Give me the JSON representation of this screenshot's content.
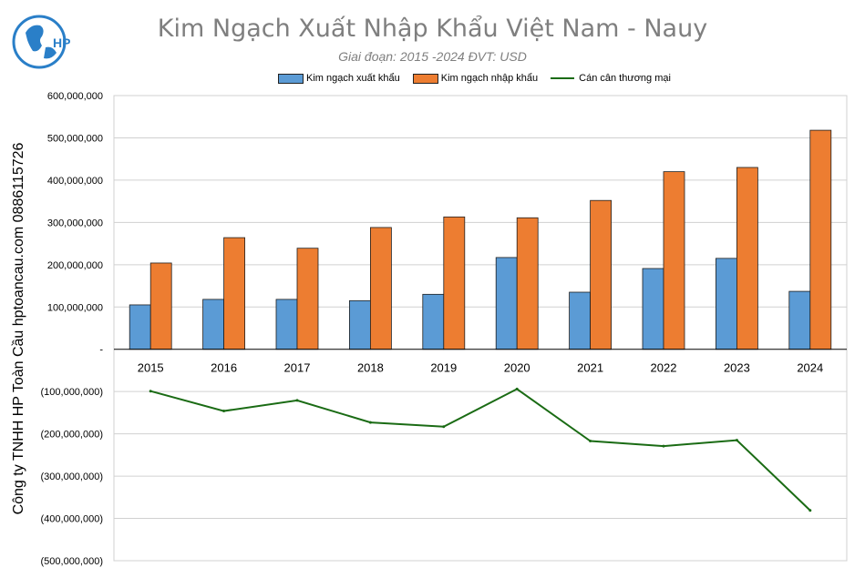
{
  "header": {
    "title": "Kim Ngạch Xuất Nhập Khẩu Việt Nam - Nauy",
    "subtitle": "Giai đoạn: 2015 -2024  ĐVT: USD"
  },
  "watermark": {
    "side_text": "Công ty TNHH HP Toàn Cầu hptoancau.com 0886115726",
    "logo_text": "HP"
  },
  "colors": {
    "export": "#5b9bd5",
    "import": "#ed7d31",
    "balance": "#1a6b14",
    "grid": "#d0d0d0"
  },
  "chart_data": {
    "type": "bar",
    "categories": [
      "2015",
      "2016",
      "2017",
      "2018",
      "2019",
      "2020",
      "2021",
      "2022",
      "2023",
      "2024"
    ],
    "series": [
      {
        "name": "Kim ngạch xuất khẩu",
        "type": "bar",
        "values": [
          105000000,
          118000000,
          118000000,
          115000000,
          130000000,
          217000000,
          135000000,
          191000000,
          215000000,
          137000000
        ]
      },
      {
        "name": "Kim ngạch nhập khẩu",
        "type": "bar",
        "values": [
          204000000,
          264000000,
          239000000,
          288000000,
          313000000,
          311000000,
          352000000,
          420000000,
          430000000,
          518000000
        ]
      },
      {
        "name": "Cán cân thương mại",
        "type": "line",
        "values": [
          -99000000,
          -146000000,
          -121000000,
          -173000000,
          -183000000,
          -94000000,
          -217000000,
          -229000000,
          -215000000,
          -381000000
        ]
      }
    ],
    "ylim": [
      -500000000,
      600000000
    ],
    "yticks": [
      600000000,
      500000000,
      400000000,
      300000000,
      200000000,
      100000000,
      0,
      -100000000,
      -200000000,
      -300000000,
      -400000000,
      -500000000
    ],
    "ytick_labels": [
      "600,000,000",
      "500,000,000",
      "400,000,000",
      "300,000,000",
      "200,000,000",
      "100,000,000",
      "-",
      "(100,000,000)",
      "(200,000,000)",
      "(300,000,000)",
      "(400,000,000)",
      "(500,000,000)"
    ],
    "title": "Kim Ngạch Xuất Nhập Khẩu Việt Nam - Nauy",
    "xlabel": "",
    "ylabel": "",
    "legend_position": "top-center",
    "grid": true
  }
}
